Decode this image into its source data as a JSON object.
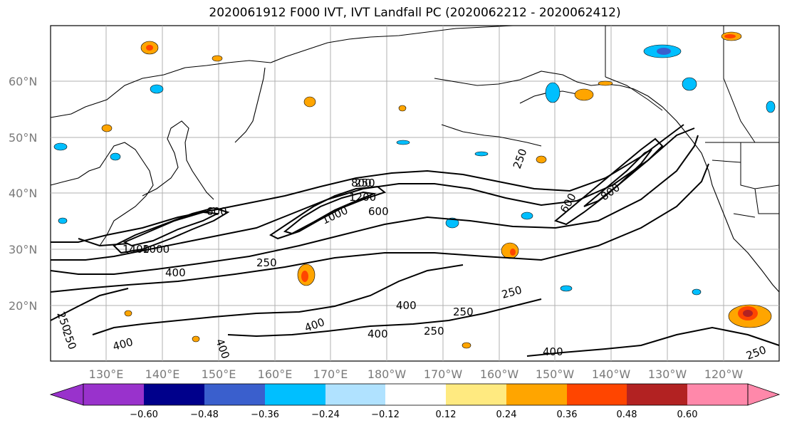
{
  "title": "2020061912 F000 IVT, IVT Landfall PC (2020062212 - 2020062412)",
  "lat_labels": [
    "60°N",
    "50°N",
    "40°N",
    "30°N",
    "20°N"
  ],
  "lon_labels": [
    "130°E",
    "140°E",
    "150°E",
    "160°E",
    "170°E",
    "180°W",
    "170°W",
    "160°W",
    "150°W",
    "140°W",
    "130°W",
    "120°W"
  ],
  "colorbar": {
    "ticks": [
      "−0.60",
      "−0.48",
      "−0.36",
      "−0.24",
      "−0.12",
      "0.12",
      "0.24",
      "0.36",
      "0.48",
      "0.60"
    ],
    "colors": [
      "#9932cc",
      "#00008b",
      "#3a5fcd",
      "#00bfff",
      "#b0e2ff",
      "#ffffff",
      "#ffea80",
      "#ffa500",
      "#ff4500",
      "#b22222",
      "#ff88aa"
    ]
  },
  "contour_labels": [
    {
      "text": "250"
    },
    {
      "text": "400"
    },
    {
      "text": "600"
    },
    {
      "text": "800"
    },
    {
      "text": "1000"
    },
    {
      "text": "1200"
    },
    {
      "text": "1400"
    },
    {
      "text": "250"
    },
    {
      "text": "400"
    },
    {
      "text": "400"
    },
    {
      "text": "250"
    },
    {
      "text": "400"
    },
    {
      "text": "250"
    },
    {
      "text": "400"
    },
    {
      "text": "400"
    },
    {
      "text": "250"
    },
    {
      "text": "250"
    },
    {
      "text": "250"
    },
    {
      "text": "600"
    },
    {
      "text": "800"
    },
    {
      "text": "600"
    },
    {
      "text": "250"
    },
    {
      "text": "400"
    },
    {
      "text": "250"
    },
    {
      "text": "1000"
    }
  ]
}
